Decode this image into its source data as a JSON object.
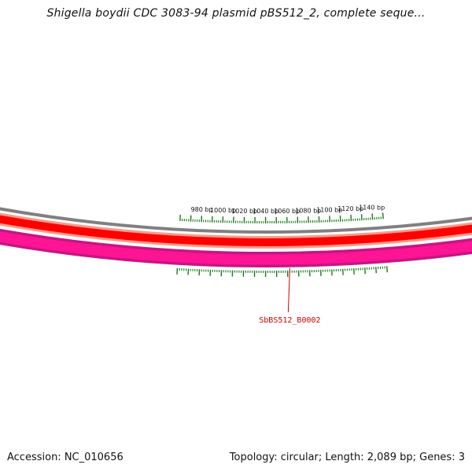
{
  "title": "Shigella boydii CDC 3083-94 plasmid pBS512_2, complete seque...",
  "footer": {
    "accession": "Accession: NC_010656",
    "summary": "Topology: circular; Length: 2,089 bp; Genes: 3"
  },
  "sequence_length_bp": 2089,
  "tick_labels": [
    {
      "bp": 1140,
      "text": "1140 bp"
    },
    {
      "bp": 1120,
      "text": "1120 bp"
    },
    {
      "bp": 1100,
      "text": "1100 bp"
    },
    {
      "bp": 1080,
      "text": "1080 bp"
    },
    {
      "bp": 1060,
      "text": "1060 bp"
    },
    {
      "bp": 1040,
      "text": "1040 bp"
    },
    {
      "bp": 1020,
      "text": "1020 bp"
    },
    {
      "bp": 1000,
      "text": "1000 bp"
    },
    {
      "bp": 980,
      "text": "980 bp"
    }
  ],
  "genes": [
    {
      "name": "SbBS512_B0002",
      "label_bp": 1062
    }
  ],
  "colors": {
    "backbone": "#808080",
    "forward_track": "#ff0000",
    "forward_track_edge": "#ff9a8a",
    "reverse_track": "#ff1493",
    "reverse_track_edge": "#c71585",
    "ticks": "#1a7a1a",
    "gene_label": "#cc0000"
  }
}
